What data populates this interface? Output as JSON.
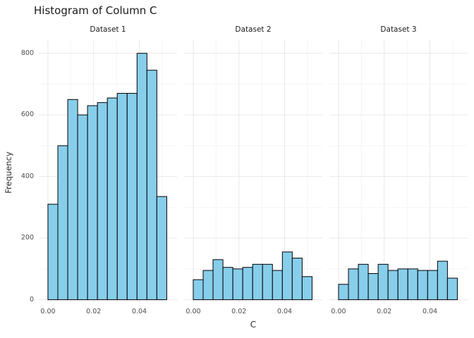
{
  "chart_data": {
    "type": "bar",
    "subtype": "faceted-histogram",
    "title": "Histogram of Column C",
    "xlabel": "C",
    "ylabel": "Frequency",
    "bin_start": 0,
    "bin_width": 0.004333,
    "x_ticks": [
      {
        "v": 0.0,
        "label": "0.00"
      },
      {
        "v": 0.02,
        "label": "0.02"
      },
      {
        "v": 0.04,
        "label": "0.04"
      }
    ],
    "x_minor": [
      0.01,
      0.03,
      0.05
    ],
    "y_ticks": [
      {
        "v": 0,
        "label": "0"
      },
      {
        "v": 200,
        "label": "200"
      },
      {
        "v": 400,
        "label": "400"
      },
      {
        "v": 600,
        "label": "600"
      },
      {
        "v": 800,
        "label": "800"
      }
    ],
    "y_minor": [
      100,
      300,
      500,
      700
    ],
    "ylim": [
      0,
      845
    ],
    "grid": "on",
    "legend": "none",
    "facets": [
      {
        "name": "Dataset 1",
        "values": [
          310,
          500,
          650,
          600,
          630,
          640,
          655,
          670,
          670,
          800,
          745,
          335
        ]
      },
      {
        "name": "Dataset 2",
        "values": [
          65,
          95,
          130,
          105,
          100,
          105,
          115,
          115,
          95,
          155,
          135,
          75
        ]
      },
      {
        "name": "Dataset 3",
        "values": [
          50,
          100,
          115,
          85,
          115,
          95,
          100,
          100,
          95,
          95,
          125,
          70
        ]
      }
    ],
    "colors": {
      "bar_fill": "#87CEEB",
      "bar_stroke": "#000000",
      "grid_major": "#e9e9e9",
      "grid_minor": "#f5f5f5"
    }
  }
}
